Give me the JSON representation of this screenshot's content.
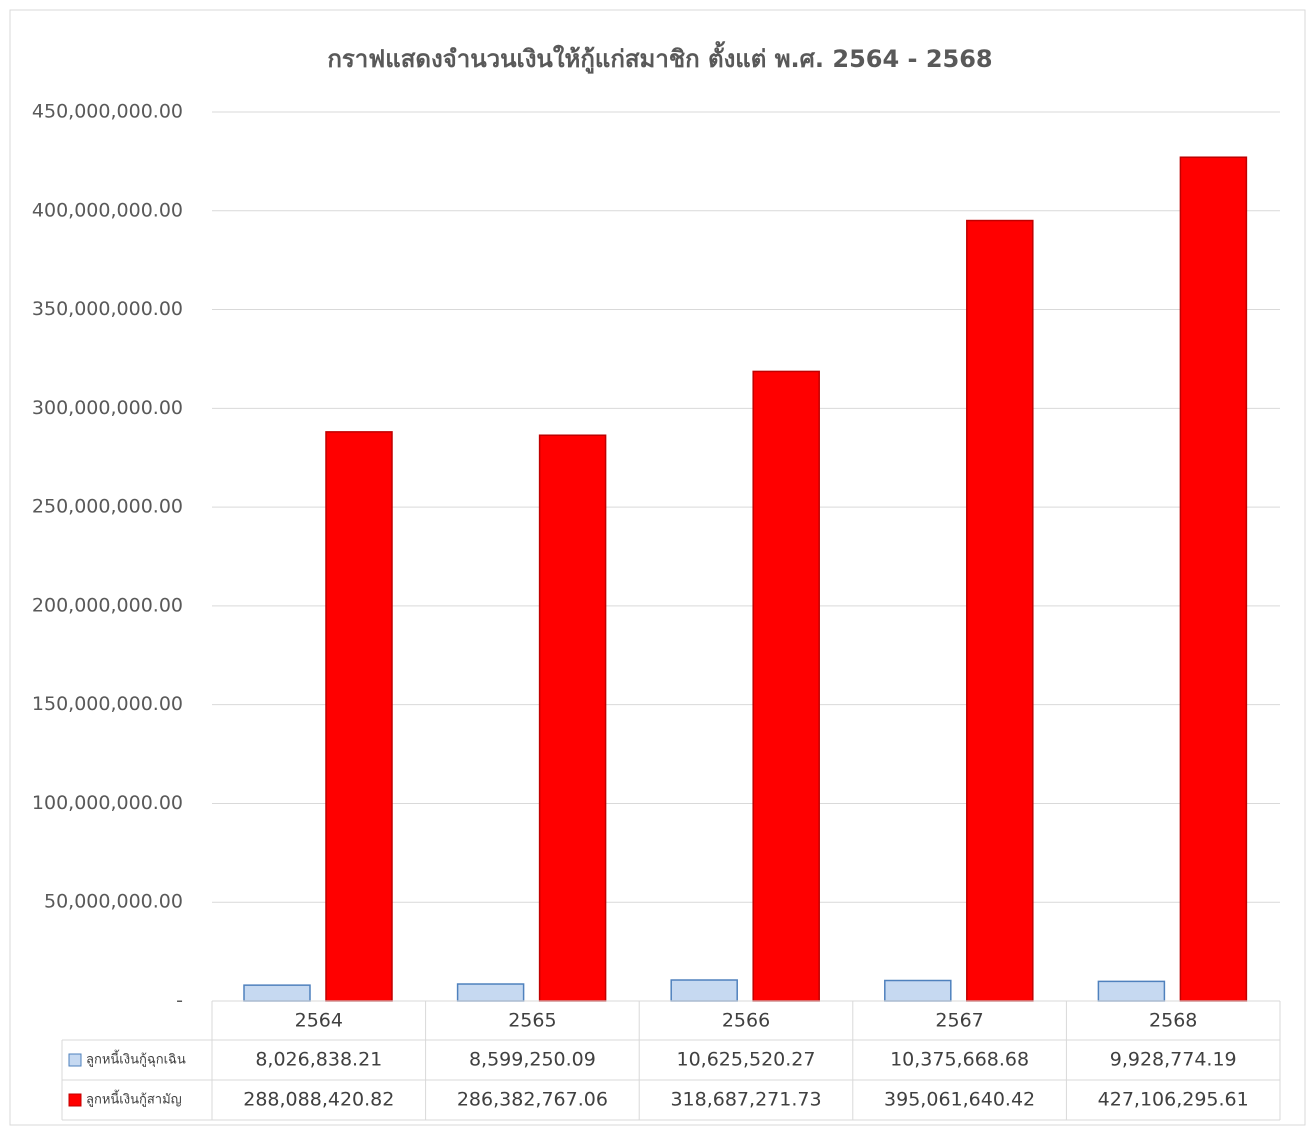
{
  "chart_data": {
    "type": "bar",
    "title": "กราฟแสดงจำนวนเงินให้กู้แก่สมาชิก ตั้งแต่ พ.ศ. 2564 - 2568",
    "categories": [
      "2564",
      "2565",
      "2566",
      "2567",
      "2568"
    ],
    "series": [
      {
        "name": "ลูกหนี้เงินกู้ฉุกเฉิน",
        "color": "#c6d9f1",
        "values": [
          8026838.21,
          8599250.09,
          10625520.27,
          10375668.68,
          9928774.19
        ],
        "value_labels": [
          "8,026,838.21",
          "8,599,250.09",
          "10,625,520.27",
          "10,375,668.68",
          "9,928,774.19"
        ]
      },
      {
        "name": "ลูกหนี้เงินกู้สามัญ",
        "color": "#ff0000",
        "values": [
          288088420.82,
          286382767.06,
          318687271.73,
          395061640.42,
          427106295.61
        ],
        "value_labels": [
          "288,088,420.82",
          "286,382,767.06",
          "318,687,271.73",
          "395,061,640.42",
          "427,106,295.61"
        ]
      }
    ],
    "ylim": [
      0,
      450000000
    ],
    "yticks": [
      {
        "value": 0,
        "label": "-"
      },
      {
        "value": 50000000,
        "label": "50,000,000.00"
      },
      {
        "value": 100000000,
        "label": "100,000,000.00"
      },
      {
        "value": 150000000,
        "label": "150,000,000.00"
      },
      {
        "value": 200000000,
        "label": "200,000,000.00"
      },
      {
        "value": 250000000,
        "label": "250,000,000.00"
      },
      {
        "value": 300000000,
        "label": "300,000,000.00"
      },
      {
        "value": 350000000,
        "label": "350,000,000.00"
      },
      {
        "value": 400000000,
        "label": "400,000,000.00"
      },
      {
        "value": 450000000,
        "label": "450,000,000.00"
      }
    ],
    "grid": true
  }
}
